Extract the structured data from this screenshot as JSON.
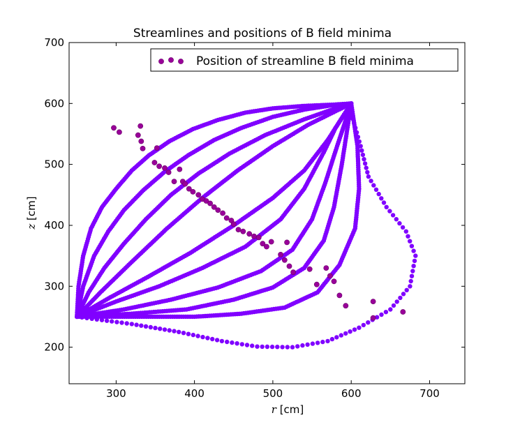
{
  "chart_data": {
    "type": "scatter",
    "title": "Streamlines and positions of B field minima",
    "xlabel_var": "r",
    "xlabel_unit": "[cm]",
    "ylabel_var": "z",
    "ylabel_unit": "[cm]",
    "xlim": [
      240,
      745
    ],
    "ylim": [
      140,
      700
    ],
    "xticks": [
      300,
      400,
      500,
      600,
      700
    ],
    "yticks": [
      200,
      300,
      400,
      500,
      600,
      700
    ],
    "grid": false,
    "legend_position": "top-right",
    "colors": {
      "streamline": "#8000ff",
      "minima": "#990099",
      "minima_edge": "#6a006a"
    },
    "streamlines": {
      "name": "Streamlines",
      "start": [
        250,
        250
      ],
      "end": [
        600,
        600
      ],
      "paths": [
        [
          [
            250,
            250
          ],
          [
            252,
            300
          ],
          [
            258,
            350
          ],
          [
            268,
            395
          ],
          [
            282,
            430
          ],
          [
            300,
            460
          ],
          [
            320,
            490
          ],
          [
            342,
            515
          ],
          [
            368,
            538
          ],
          [
            398,
            558
          ],
          [
            430,
            573
          ],
          [
            465,
            585
          ],
          [
            500,
            592
          ],
          [
            540,
            596
          ],
          [
            575,
            598
          ],
          [
            600,
            600
          ]
        ],
        [
          [
            250,
            250
          ],
          [
            258,
            300
          ],
          [
            272,
            350
          ],
          [
            290,
            390
          ],
          [
            310,
            425
          ],
          [
            335,
            458
          ],
          [
            362,
            488
          ],
          [
            392,
            515
          ],
          [
            425,
            540
          ],
          [
            460,
            560
          ],
          [
            500,
            578
          ],
          [
            540,
            590
          ],
          [
            575,
            597
          ],
          [
            600,
            600
          ]
        ],
        [
          [
            250,
            250
          ],
          [
            265,
            290
          ],
          [
            285,
            330
          ],
          [
            310,
            370
          ],
          [
            338,
            410
          ],
          [
            370,
            450
          ],
          [
            405,
            485
          ],
          [
            445,
            518
          ],
          [
            490,
            548
          ],
          [
            540,
            574
          ],
          [
            580,
            592
          ],
          [
            600,
            600
          ]
        ],
        [
          [
            250,
            250
          ],
          [
            280,
            290
          ],
          [
            320,
            340
          ],
          [
            365,
            395
          ],
          [
            410,
            445
          ],
          [
            455,
            490
          ],
          [
            500,
            530
          ],
          [
            545,
            565
          ],
          [
            600,
            600
          ]
        ],
        [
          [
            250,
            250
          ],
          [
            290,
            280
          ],
          [
            340,
            315
          ],
          [
            395,
            355
          ],
          [
            450,
            400
          ],
          [
            500,
            445
          ],
          [
            540,
            490
          ],
          [
            570,
            540
          ],
          [
            600,
            600
          ]
        ],
        [
          [
            250,
            250
          ],
          [
            300,
            275
          ],
          [
            355,
            300
          ],
          [
            410,
            330
          ],
          [
            465,
            365
          ],
          [
            510,
            410
          ],
          [
            540,
            460
          ],
          [
            565,
            520
          ],
          [
            580,
            560
          ],
          [
            600,
            600
          ]
        ],
        [
          [
            250,
            250
          ],
          [
            310,
            262
          ],
          [
            370,
            278
          ],
          [
            430,
            298
          ],
          [
            485,
            325
          ],
          [
            525,
            360
          ],
          [
            550,
            410
          ],
          [
            567,
            470
          ],
          [
            582,
            530
          ],
          [
            600,
            600
          ]
        ],
        [
          [
            250,
            250
          ],
          [
            320,
            255
          ],
          [
            390,
            262
          ],
          [
            450,
            278
          ],
          [
            500,
            298
          ],
          [
            540,
            330
          ],
          [
            565,
            375
          ],
          [
            578,
            430
          ],
          [
            588,
            500
          ],
          [
            600,
            600
          ]
        ],
        [
          [
            250,
            250
          ],
          [
            330,
            250
          ],
          [
            400,
            250
          ],
          [
            460,
            255
          ],
          [
            515,
            265
          ],
          [
            557,
            290
          ],
          [
            585,
            335
          ],
          [
            605,
            395
          ],
          [
            610,
            460
          ],
          [
            608,
            530
          ],
          [
            600,
            600
          ]
        ],
        [
          [
            250,
            250
          ],
          [
            320,
            238
          ],
          [
            380,
            225
          ],
          [
            435,
            210
          ],
          [
            480,
            201
          ],
          [
            525,
            200
          ],
          [
            570,
            210
          ],
          [
            610,
            232
          ],
          [
            650,
            262
          ],
          [
            675,
            300
          ],
          [
            682,
            350
          ],
          [
            670,
            390
          ],
          [
            645,
            430
          ],
          [
            622,
            480
          ],
          [
            612,
            530
          ],
          [
            602,
            575
          ],
          [
            600,
            600
          ]
        ]
      ]
    },
    "minima": {
      "name": "Position of streamline B field minima",
      "points": [
        [
          297,
          560
        ],
        [
          304,
          553
        ],
        [
          328,
          548
        ],
        [
          331,
          563
        ],
        [
          332,
          538
        ],
        [
          334,
          526
        ],
        [
          352,
          527
        ],
        [
          349,
          503
        ],
        [
          355,
          497
        ],
        [
          362,
          494
        ],
        [
          367,
          487
        ],
        [
          374,
          472
        ],
        [
          381,
          492
        ],
        [
          385,
          472
        ],
        [
          388,
          468
        ],
        [
          393,
          460
        ],
        [
          398,
          455
        ],
        [
          405,
          450
        ],
        [
          410,
          443
        ],
        [
          415,
          440
        ],
        [
          420,
          436
        ],
        [
          425,
          430
        ],
        [
          430,
          425
        ],
        [
          436,
          420
        ],
        [
          441,
          412
        ],
        [
          447,
          408
        ],
        [
          450,
          402
        ],
        [
          456,
          393
        ],
        [
          462,
          390
        ],
        [
          470,
          386
        ],
        [
          476,
          382
        ],
        [
          482,
          380
        ],
        [
          487,
          370
        ],
        [
          492,
          365
        ],
        [
          498,
          373
        ],
        [
          510,
          352
        ],
        [
          515,
          343
        ],
        [
          518,
          372
        ],
        [
          521,
          333
        ],
        [
          526,
          323
        ],
        [
          547,
          328
        ],
        [
          556,
          303
        ],
        [
          568,
          330
        ],
        [
          573,
          317
        ],
        [
          578,
          308
        ],
        [
          585,
          285
        ],
        [
          593,
          268
        ],
        [
          628,
          275
        ],
        [
          628,
          248
        ],
        [
          666,
          258
        ]
      ]
    }
  }
}
